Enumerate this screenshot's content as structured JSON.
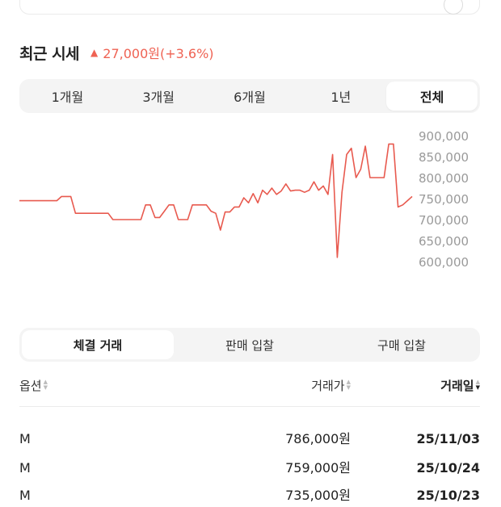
{
  "header": {
    "title": "최근 시세",
    "change_text": "27,000원(+3.6%)",
    "change_color": "#ef6253"
  },
  "period_tabs": [
    {
      "label": "1개월",
      "active": false
    },
    {
      "label": "3개월",
      "active": false
    },
    {
      "label": "6개월",
      "active": false
    },
    {
      "label": "1년",
      "active": false
    },
    {
      "label": "전체",
      "active": true
    }
  ],
  "chart_data": {
    "type": "line",
    "y_ticks": [
      "900,000",
      "850,000",
      "800,000",
      "750,000",
      "700,000",
      "650,000",
      "600,000"
    ],
    "ylim": [
      600000,
      900000
    ],
    "line_color": "#e85a4f",
    "series": [
      {
        "values": [
          745000,
          745000,
          745000,
          745000,
          745000,
          745000,
          745000,
          745000,
          745000,
          755000,
          755000,
          755000,
          715000,
          715000,
          715000,
          715000,
          715000,
          715000,
          715000,
          715000,
          700000,
          700000,
          700000,
          700000,
          700000,
          700000,
          700000,
          735000,
          735000,
          705000,
          705000,
          720000,
          735000,
          735000,
          700000,
          700000,
          700000,
          735000,
          735000,
          735000,
          735000,
          720000,
          715000,
          675000,
          718000,
          718000,
          730000,
          730000,
          752000,
          740000,
          762000,
          740000,
          770000,
          760000,
          775000,
          760000,
          768000,
          785000,
          768000,
          770000,
          770000,
          765000,
          770000,
          790000,
          770000,
          780000,
          760000,
          855000,
          610000,
          765000,
          855000,
          870000,
          800000,
          820000,
          875000,
          800000,
          800000,
          800000,
          800000,
          880000,
          880000,
          730000,
          735000,
          745000,
          755000
        ]
      }
    ]
  },
  "trade_tabs": [
    {
      "label": "체결 거래",
      "active": true
    },
    {
      "label": "판매 입찰",
      "active": false
    },
    {
      "label": "구매 입찰",
      "active": false
    }
  ],
  "table": {
    "headers": {
      "option": "옵션",
      "price": "거래가",
      "date": "거래일"
    },
    "rows": [
      {
        "option": "M",
        "price": "786,000원",
        "date": "25/11/03"
      },
      {
        "option": "M",
        "price": "759,000원",
        "date": "25/10/24"
      },
      {
        "option": "M",
        "price": "735,000원",
        "date": "25/10/23"
      }
    ]
  }
}
